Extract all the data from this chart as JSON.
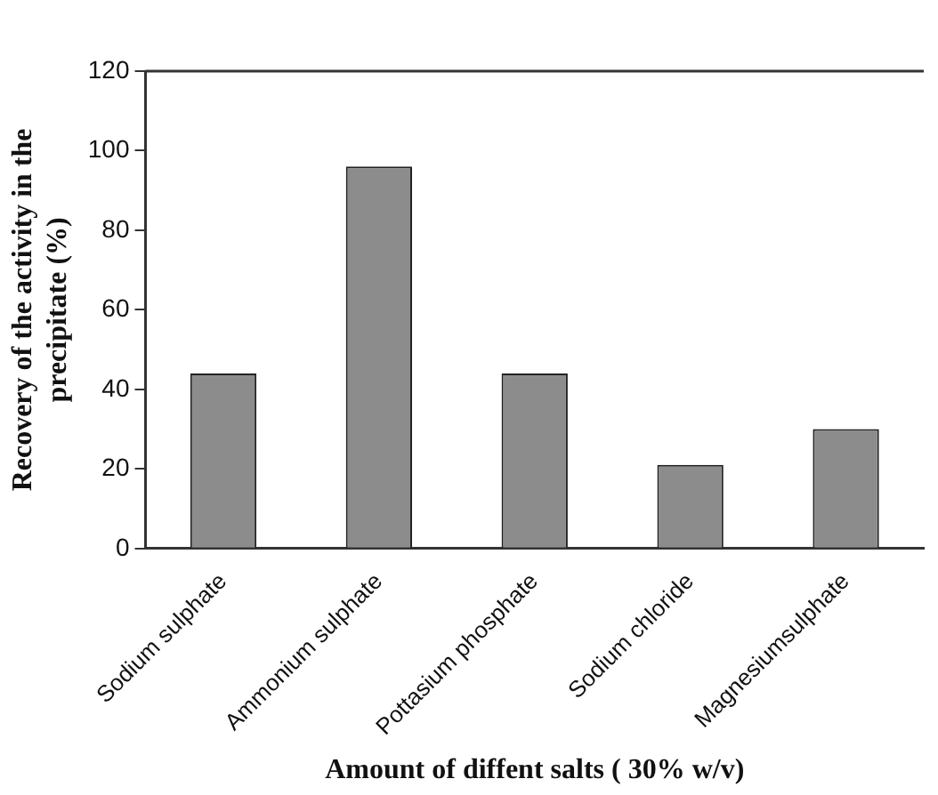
{
  "chart_data": {
    "type": "bar",
    "categories": [
      "Sodium sulphate",
      "Ammonium sulphate",
      "Pottasium phosphate",
      "Sodium chloride",
      "Magnesiumsulphate"
    ],
    "values": [
      44,
      96,
      44,
      21,
      30
    ],
    "color": "#8c8c8c",
    "xlabel": "Amount of diffent salts ( 30% w/v)",
    "ylabel": "Recovery of the activity in the precipitate (%)",
    "ylim": [
      0,
      120
    ],
    "yticks": [
      0,
      20,
      40,
      60,
      80,
      100,
      120
    ],
    "grid": false
  }
}
